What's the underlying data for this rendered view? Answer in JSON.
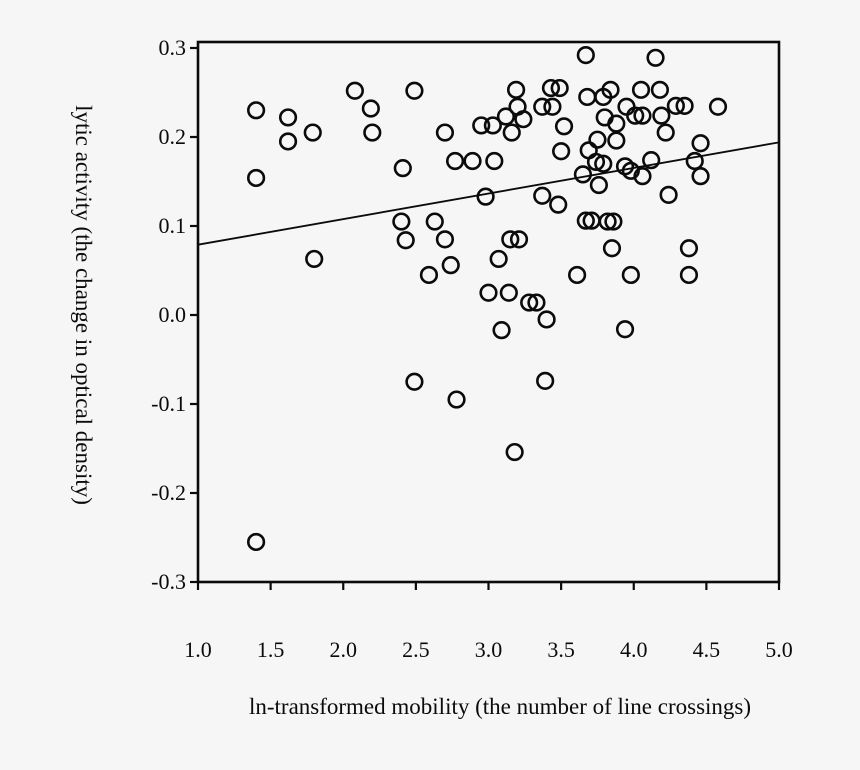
{
  "figure": {
    "background": "#f5f6f5",
    "ink_color": "#0b0b0b"
  },
  "chart_data": {
    "type": "scatter",
    "title": "",
    "xlabel": "ln-transformed mobility (the number of line crossings)",
    "ylabel": "lytic activity (the change in optical density)",
    "xlim": [
      1.0,
      5.0
    ],
    "ylim": [
      -0.3,
      0.3
    ],
    "grid": false,
    "legend": "none",
    "marker": "open-circle",
    "x_ticks": [
      1.0,
      1.5,
      2.0,
      2.5,
      3.0,
      3.5,
      4.0,
      4.5,
      5.0
    ],
    "x_tick_labels": [
      "1.0",
      "1.5",
      "2.0",
      "2.5",
      "3.0",
      "3.5",
      "4.0",
      "4.5",
      "5.0"
    ],
    "y_ticks": [
      0.3,
      0.2,
      0.1,
      0.0,
      -0.1,
      -0.2,
      -0.3
    ],
    "y_tick_labels": [
      "0.3",
      "0.2",
      "0.1",
      "0.0",
      "-0.1",
      "-0.2",
      "-0.3"
    ],
    "regression_line": {
      "x_start": 1.0,
      "y_start": 0.079,
      "x_end": 5.0,
      "y_end": 0.194
    },
    "points": [
      [
        1.4,
        0.23
      ],
      [
        1.62,
        0.222
      ],
      [
        1.79,
        0.205
      ],
      [
        1.62,
        0.195
      ],
      [
        1.4,
        0.154
      ],
      [
        2.08,
        0.252
      ],
      [
        2.19,
        0.232
      ],
      [
        2.2,
        0.205
      ],
      [
        1.8,
        0.063
      ],
      [
        1.4,
        -0.255
      ],
      [
        2.49,
        0.252
      ],
      [
        2.41,
        0.165
      ],
      [
        2.7,
        0.205
      ],
      [
        2.77,
        0.173
      ],
      [
        2.89,
        0.173
      ],
      [
        3.04,
        0.173
      ],
      [
        2.95,
        0.213
      ],
      [
        3.03,
        0.213
      ],
      [
        3.12,
        0.223
      ],
      [
        3.16,
        0.205
      ],
      [
        3.2,
        0.234
      ],
      [
        3.19,
        0.253
      ],
      [
        3.24,
        0.22
      ],
      [
        2.98,
        0.133
      ],
      [
        3.37,
        0.134
      ],
      [
        3.48,
        0.124
      ],
      [
        3.43,
        0.255
      ],
      [
        3.49,
        0.255
      ],
      [
        3.37,
        0.234
      ],
      [
        3.44,
        0.234
      ],
      [
        3.52,
        0.212
      ],
      [
        3.5,
        0.184
      ],
      [
        2.4,
        0.105
      ],
      [
        2.63,
        0.105
      ],
      [
        3.15,
        0.085
      ],
      [
        3.21,
        0.085
      ],
      [
        3.07,
        0.063
      ],
      [
        2.43,
        0.084
      ],
      [
        2.7,
        0.085
      ],
      [
        2.59,
        0.045
      ],
      [
        2.74,
        0.056
      ],
      [
        3.61,
        0.045
      ],
      [
        3.0,
        0.025
      ],
      [
        3.14,
        0.025
      ],
      [
        3.28,
        0.014
      ],
      [
        3.33,
        0.014
      ],
      [
        3.4,
        -0.005
      ],
      [
        3.09,
        -0.017
      ],
      [
        2.49,
        -0.075
      ],
      [
        3.39,
        -0.074
      ],
      [
        2.78,
        -0.095
      ],
      [
        3.18,
        -0.154
      ],
      [
        3.67,
        0.292
      ],
      [
        4.15,
        0.289
      ],
      [
        3.68,
        0.245
      ],
      [
        3.79,
        0.245
      ],
      [
        3.84,
        0.253
      ],
      [
        4.05,
        0.253
      ],
      [
        4.18,
        0.253
      ],
      [
        3.95,
        0.234
      ],
      [
        4.01,
        0.224
      ],
      [
        4.06,
        0.224
      ],
      [
        4.19,
        0.224
      ],
      [
        4.29,
        0.235
      ],
      [
        4.35,
        0.235
      ],
      [
        4.58,
        0.234
      ],
      [
        3.8,
        0.222
      ],
      [
        3.88,
        0.215
      ],
      [
        4.22,
        0.205
      ],
      [
        3.75,
        0.197
      ],
      [
        3.88,
        0.196
      ],
      [
        4.46,
        0.193
      ],
      [
        3.69,
        0.185
      ],
      [
        3.74,
        0.172
      ],
      [
        3.79,
        0.17
      ],
      [
        3.65,
        0.158
      ],
      [
        3.76,
        0.146
      ],
      [
        3.94,
        0.167
      ],
      [
        3.98,
        0.162
      ],
      [
        4.06,
        0.156
      ],
      [
        4.12,
        0.174
      ],
      [
        4.42,
        0.173
      ],
      [
        4.46,
        0.156
      ],
      [
        4.24,
        0.135
      ],
      [
        3.67,
        0.106
      ],
      [
        3.71,
        0.106
      ],
      [
        3.82,
        0.105
      ],
      [
        3.86,
        0.105
      ],
      [
        3.85,
        0.075
      ],
      [
        4.38,
        0.075
      ],
      [
        3.98,
        0.045
      ],
      [
        4.38,
        0.045
      ],
      [
        3.94,
        -0.016
      ]
    ]
  }
}
